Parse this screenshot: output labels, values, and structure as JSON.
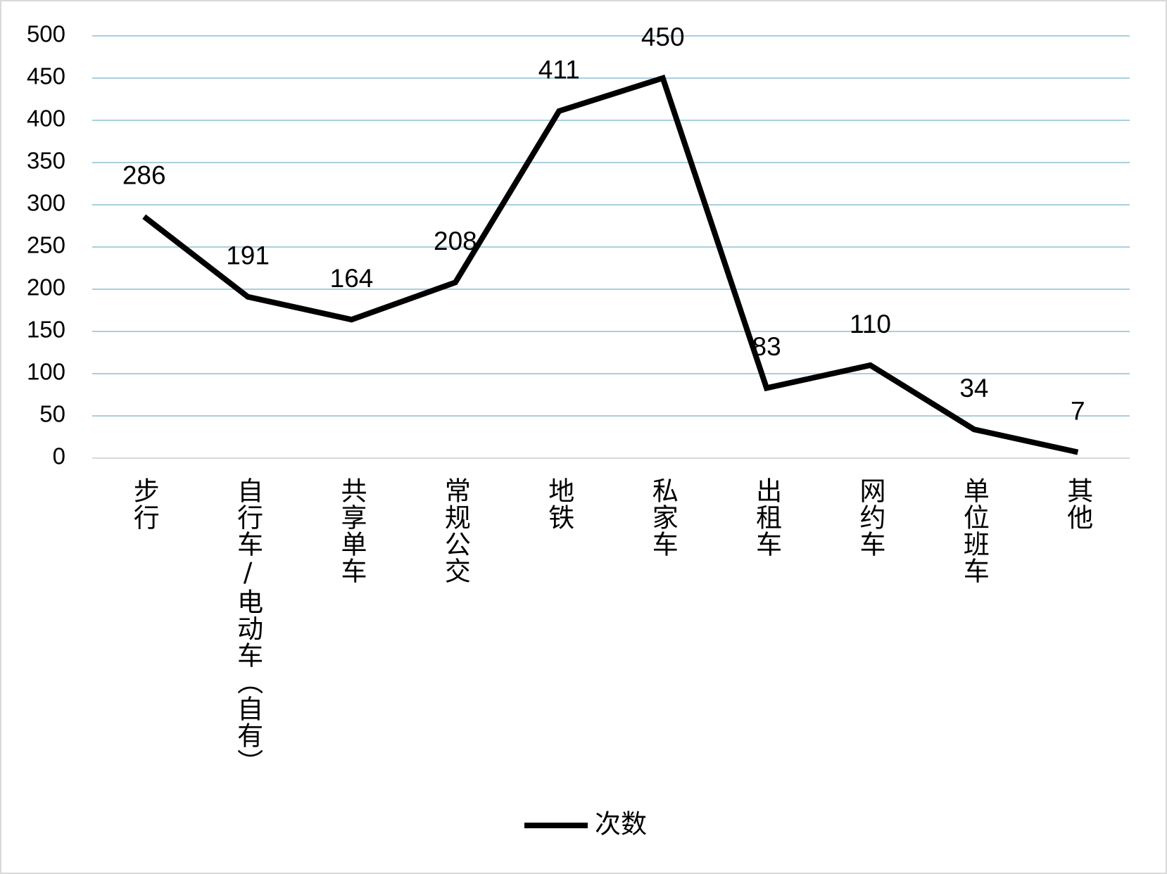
{
  "chart_data": {
    "type": "line",
    "categories": [
      "步行",
      "自行车/电动车（自有）",
      "共享单车",
      "常规公交",
      "地铁",
      "私家车",
      "出租车",
      "网约车",
      "单位班车",
      "其他"
    ],
    "series": [
      {
        "name": "次数",
        "color": "#000000",
        "values": [
          286,
          191,
          164,
          208,
          411,
          450,
          83,
          110,
          34,
          7
        ]
      }
    ],
    "ylim": [
      0,
      500
    ],
    "yticks": [
      0,
      50,
      100,
      150,
      200,
      250,
      300,
      350,
      400,
      450,
      500
    ],
    "grid": true,
    "data_labels": true,
    "legend": "bottom"
  }
}
